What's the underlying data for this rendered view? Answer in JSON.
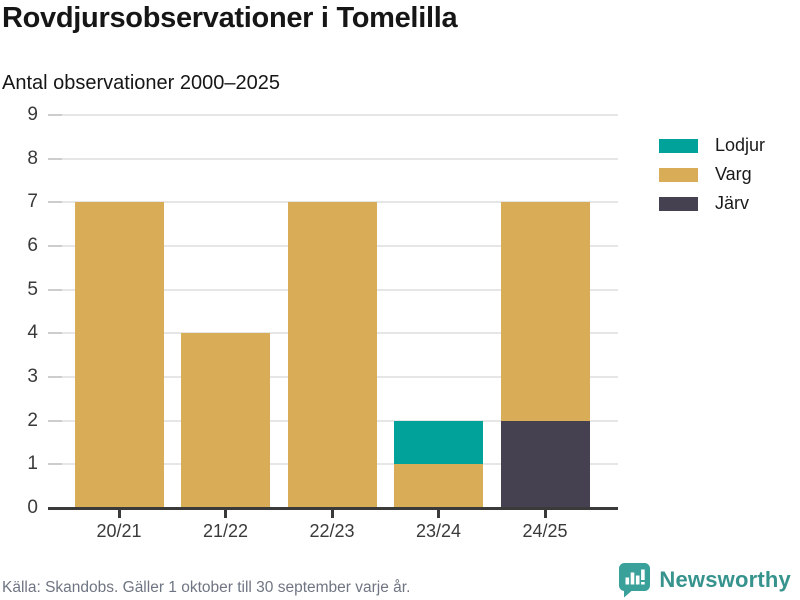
{
  "header": {
    "title": "Rovdjursobservationer i Tomelilla",
    "subtitle": "Antal observationer 2000–2025"
  },
  "chart_data": {
    "type": "bar",
    "stacked": true,
    "title": "Rovdjursobservationer i Tomelilla",
    "subtitle": "Antal observationer 2000–2025",
    "xlabel": "",
    "ylabel": "",
    "categories": [
      "20/21",
      "21/22",
      "22/23",
      "23/24",
      "24/25"
    ],
    "series": [
      {
        "name": "Lodjur",
        "color": "#00A29A",
        "values": [
          0,
          0,
          0,
          1,
          0
        ]
      },
      {
        "name": "Varg",
        "color": "#D9AC57",
        "values": [
          7,
          4,
          7,
          1,
          5
        ]
      },
      {
        "name": "Järv",
        "color": "#454150",
        "values": [
          0,
          0,
          0,
          0,
          2
        ]
      }
    ],
    "stack_order_bottom_to_top": [
      "Järv",
      "Varg",
      "Lodjur"
    ],
    "totals": [
      7,
      4,
      7,
      2,
      7
    ],
    "ylim": [
      0,
      9
    ],
    "yticks": [
      0,
      1,
      2,
      3,
      4,
      5,
      6,
      7,
      8,
      9
    ],
    "grid": true,
    "legend_position": "right"
  },
  "footer": {
    "source": "Källa: Skandobs. Gäller 1 oktober till 30 september varje år.",
    "brand": "Newsworthy"
  },
  "colors": {
    "axis": "#3A3A3A",
    "grid": "#E6E6E6",
    "text": "#161616",
    "muted": "#6F7582",
    "brand_teal": "#3AA19A",
    "brand_text": "#37938D"
  }
}
